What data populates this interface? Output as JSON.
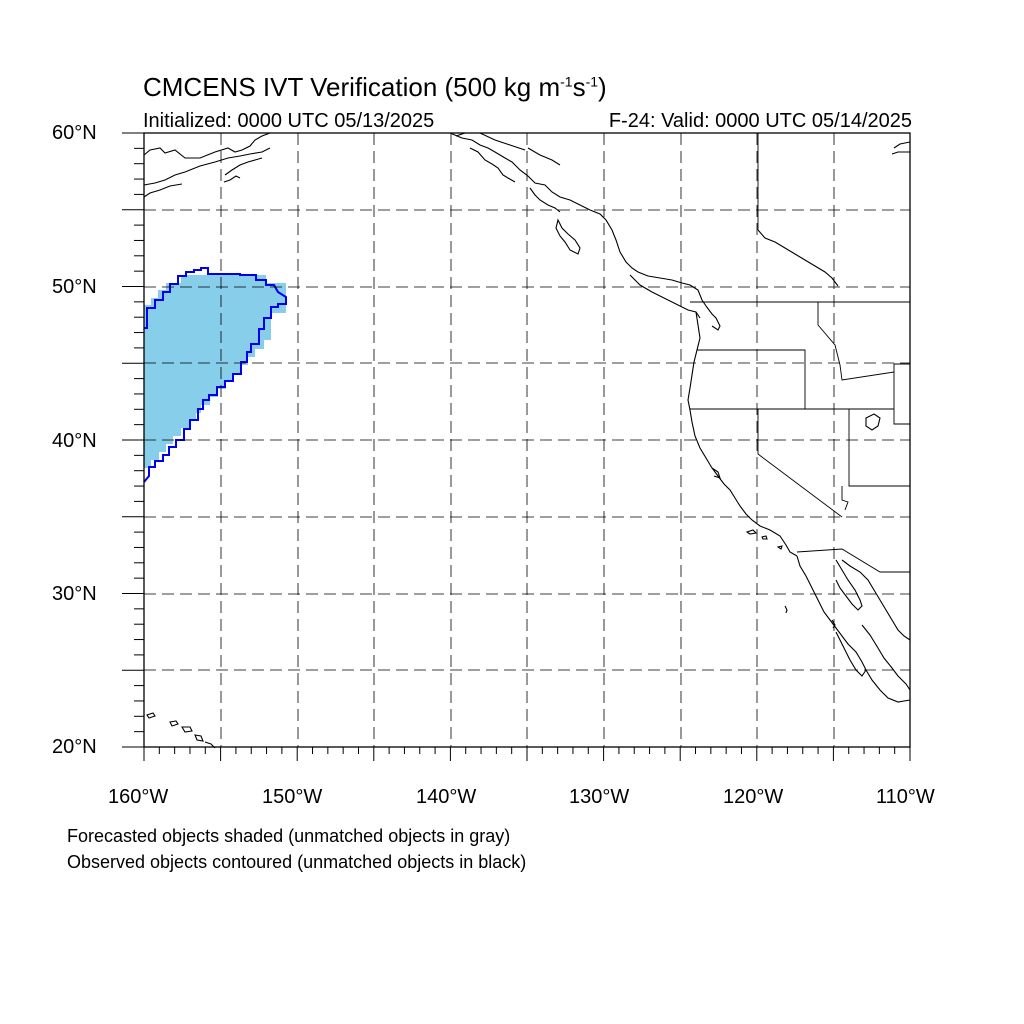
{
  "title": {
    "main": "CMCENS IVT Verification (500 kg m",
    "sup1": "-1",
    "mid": "s",
    "sup2": "-1",
    "end": ")"
  },
  "initialized": "Initialized: 0000 UTC 05/13/2025",
  "valid": "F-24: Valid: 0000 UTC 05/14/2025",
  "lat_labels": [
    "60°N",
    "50°N",
    "40°N",
    "30°N",
    "20°N"
  ],
  "lon_labels": [
    "160°W",
    "150°W",
    "140°W",
    "130°W",
    "120°W",
    "110°W"
  ],
  "captions": [
    "Forecasted objects shaded (unmatched objects in gray)",
    "Observed objects contoured (unmatched objects in black)"
  ],
  "colors": {
    "forecast_fill": "#87ceeb",
    "observed_contour": "#0000ee",
    "coastline": "#000000",
    "grid": "#000000"
  },
  "map": {
    "lon_range": [
      -160,
      -110
    ],
    "lat_range": [
      20,
      60
    ],
    "gridlines": "dashed every 5°",
    "projection": "cylindrical equidistant"
  }
}
